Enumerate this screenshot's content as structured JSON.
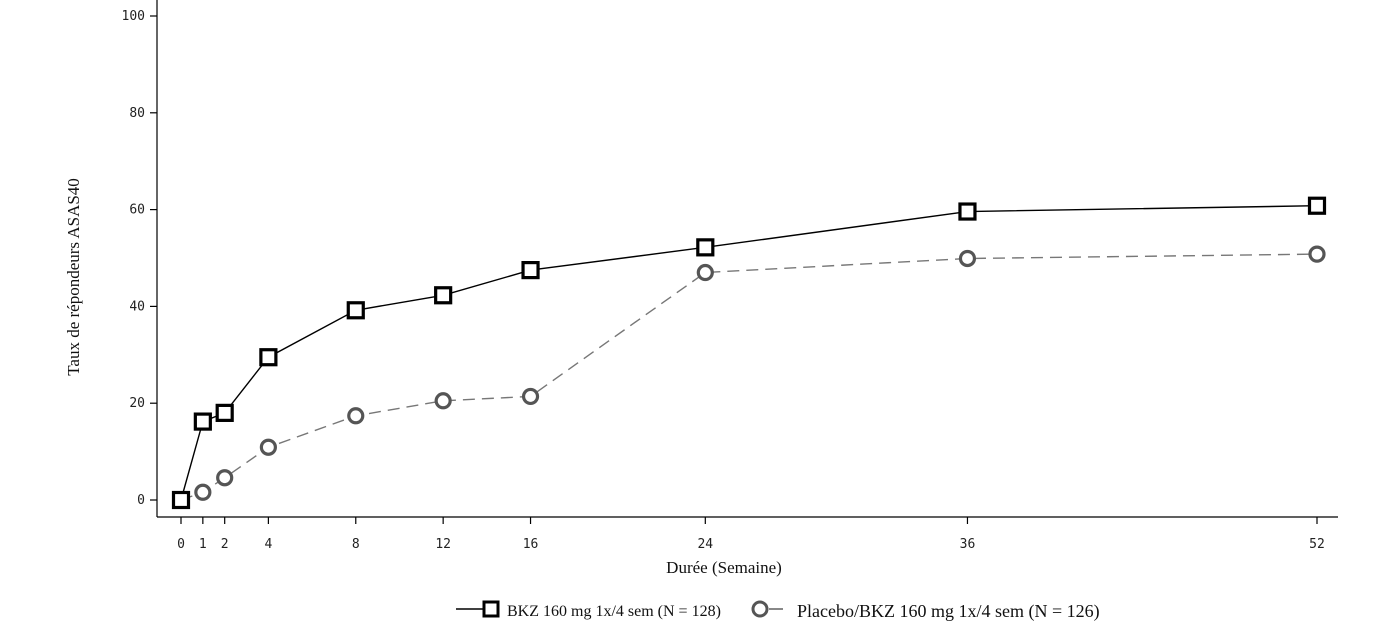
{
  "chart_data": {
    "type": "line",
    "title": "",
    "xlabel": "Durée (Semaine)",
    "ylabel": "Taux de répondeurs ASAS40",
    "xlim": [
      -1,
      53
    ],
    "ylim": [
      0,
      100
    ],
    "x_ticks": [
      0,
      1,
      2,
      4,
      8,
      12,
      16,
      24,
      36,
      52
    ],
    "y_ticks": [
      0,
      20,
      40,
      60,
      80,
      100
    ],
    "grid": false,
    "legend_position": "bottom",
    "series": [
      {
        "name": "BKZ 160 mg 1x/4 sem (N = 128)",
        "marker": "square",
        "line": "solid",
        "color": "#000000",
        "x": [
          0,
          1,
          2,
          4,
          8,
          12,
          16,
          24,
          36,
          52
        ],
        "values": [
          0,
          16.2,
          18.0,
          29.5,
          39.2,
          42.3,
          47.5,
          52.2,
          59.6,
          60.8
        ]
      },
      {
        "name": "Placebo/BKZ 160 mg 1x/4 sem (N = 126)",
        "marker": "circle",
        "line": "dashed",
        "color": "#555555",
        "x": [
          0,
          1,
          2,
          4,
          8,
          12,
          16,
          24,
          36,
          52
        ],
        "values": [
          0,
          1.6,
          4.6,
          10.9,
          17.4,
          20.5,
          21.4,
          47.0,
          49.9,
          50.8
        ]
      }
    ]
  }
}
